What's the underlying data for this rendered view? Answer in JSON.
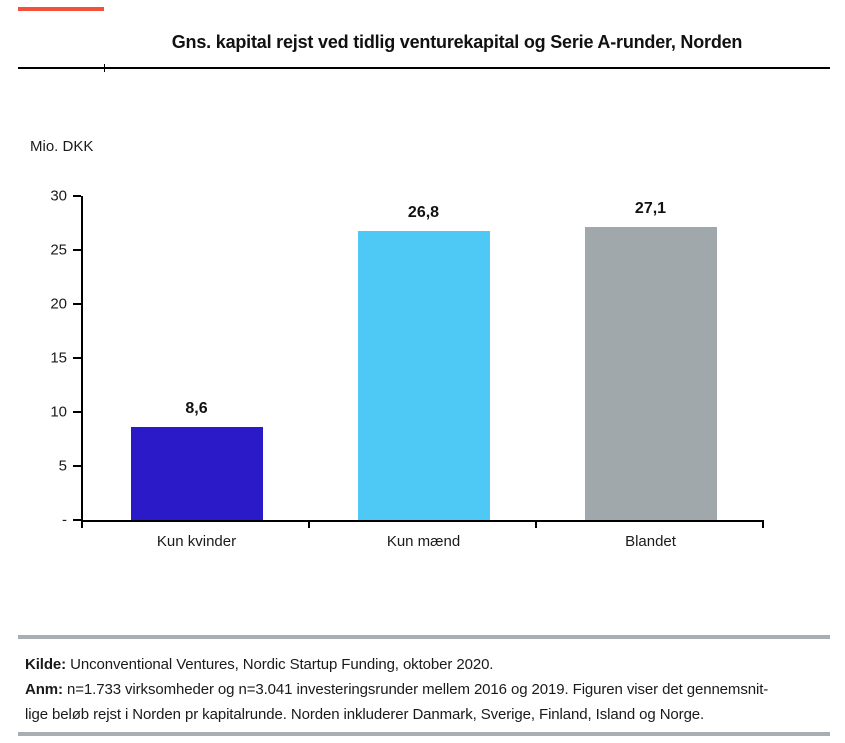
{
  "page": {
    "accent_color": "#f4503a",
    "rule_color": "#a9aeb2",
    "text_color": "#1a1a1a"
  },
  "header": {
    "title": "Gns. kapital rejst ved tidlig venturekapital og Serie A-runder, Norden"
  },
  "chart_data": {
    "type": "bar",
    "title": "Gns. kapital rejst ved tidlig venturekapital og Serie A-runder, Norden",
    "unit_label": "Mio. DKK",
    "categories": [
      "Kun kvinder",
      "Kun mænd",
      "Blandet"
    ],
    "values": [
      8.6,
      26.8,
      27.1
    ],
    "value_labels": [
      "8,6",
      "26,8",
      "27,1"
    ],
    "bar_colors": [
      "#2a1ac8",
      "#4ec9f6",
      "#a0a8ab"
    ],
    "ylim": [
      0,
      30
    ],
    "yticks": [
      30,
      25,
      20,
      15,
      10,
      5,
      0
    ],
    "ytick_labels": [
      "30",
      "25",
      "20",
      "15",
      "10",
      "5",
      "-"
    ],
    "grid": false,
    "legend_position": "none"
  },
  "footer": {
    "kilde_label": "Kilde:",
    "kilde_text": " Unconventional Ventures, Nordic Startup Funding, oktober 2020.",
    "anm_label": "Anm:",
    "anm_line1": " n=1.733 virksomheder og n=3.041 investeringsrunder mellem 2016 og 2019. Figuren viser det gennemsnit-",
    "anm_line2": "lige beløb rejst i Norden pr kapitalrunde. Norden inkluderer Danmark, Sverige, Finland, Island og Norge."
  }
}
